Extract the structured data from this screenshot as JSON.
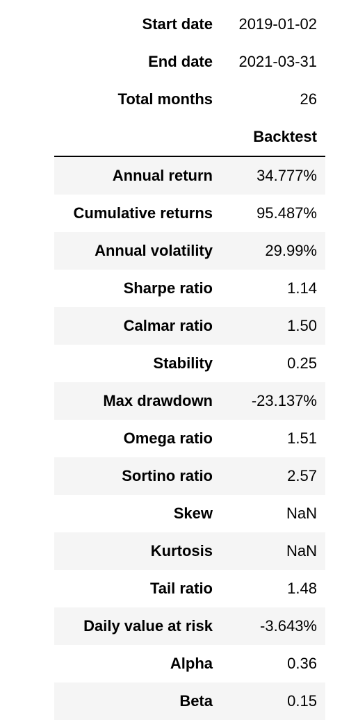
{
  "info": [
    {
      "label": "Start date",
      "value": "2019-01-02"
    },
    {
      "label": "End date",
      "value": "2021-03-31"
    },
    {
      "label": "Total months",
      "value": "26"
    }
  ],
  "column_header": "Backtest",
  "metrics": [
    {
      "label": "Annual return",
      "value": "34.777%"
    },
    {
      "label": "Cumulative returns",
      "value": "95.487%"
    },
    {
      "label": "Annual volatility",
      "value": "29.99%"
    },
    {
      "label": "Sharpe ratio",
      "value": "1.14"
    },
    {
      "label": "Calmar ratio",
      "value": "1.50"
    },
    {
      "label": "Stability",
      "value": "0.25"
    },
    {
      "label": "Max drawdown",
      "value": "-23.137%"
    },
    {
      "label": "Omega ratio",
      "value": "1.51"
    },
    {
      "label": "Sortino ratio",
      "value": "2.57"
    },
    {
      "label": "Skew",
      "value": "NaN"
    },
    {
      "label": "Kurtosis",
      "value": "NaN"
    },
    {
      "label": "Tail ratio",
      "value": "1.48"
    },
    {
      "label": "Daily value at risk",
      "value": "-3.643%"
    },
    {
      "label": "Alpha",
      "value": "0.36"
    },
    {
      "label": "Beta",
      "value": "0.15"
    }
  ]
}
